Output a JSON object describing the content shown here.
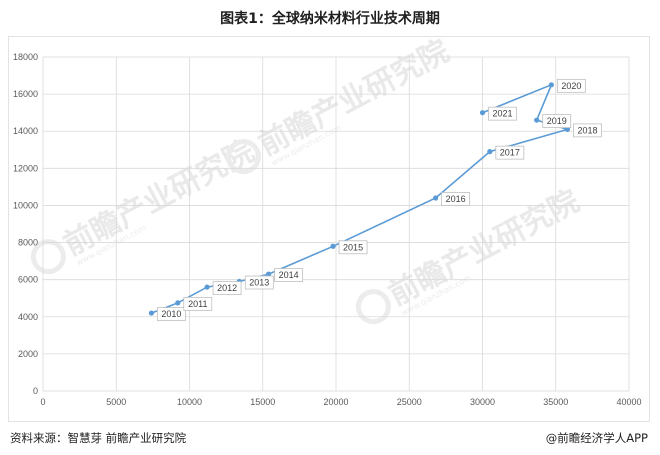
{
  "title": "图表1：全球纳米材料行业技术周期",
  "footer": {
    "source": "资料来源：智慧芽 前瞻产业研究院",
    "brand": "@前瞻经济学人APP"
  },
  "watermark": {
    "text": "前瞻产业研究院",
    "subtext": "www.qianzhan.com"
  },
  "colors": {
    "line": "#5b9bd5",
    "grid": "#d9d9d9",
    "label_border": "#bfbfbf"
  },
  "chart_data": {
    "type": "scatter",
    "connected": true,
    "xlim": [
      0,
      40000
    ],
    "ylim": [
      0,
      18000
    ],
    "xticks": [
      0,
      5000,
      10000,
      15000,
      20000,
      25000,
      30000,
      35000,
      40000
    ],
    "yticks": [
      0,
      2000,
      4000,
      6000,
      8000,
      10000,
      12000,
      14000,
      16000,
      18000
    ],
    "grid": true,
    "points": [
      {
        "label": "2010",
        "x": 7400,
        "y": 4200
      },
      {
        "label": "2011",
        "x": 9200,
        "y": 4750
      },
      {
        "label": "2012",
        "x": 11200,
        "y": 5600
      },
      {
        "label": "2013",
        "x": 13400,
        "y": 5900
      },
      {
        "label": "2014",
        "x": 15400,
        "y": 6300
      },
      {
        "label": "2015",
        "x": 19800,
        "y": 7800
      },
      {
        "label": "2016",
        "x": 26800,
        "y": 10400
      },
      {
        "label": "2017",
        "x": 30500,
        "y": 12900
      },
      {
        "label": "2018",
        "x": 35800,
        "y": 14100
      },
      {
        "label": "2019",
        "x": 33700,
        "y": 14600
      },
      {
        "label": "2020",
        "x": 34700,
        "y": 16500
      },
      {
        "label": "2021",
        "x": 30000,
        "y": 15000
      }
    ]
  }
}
